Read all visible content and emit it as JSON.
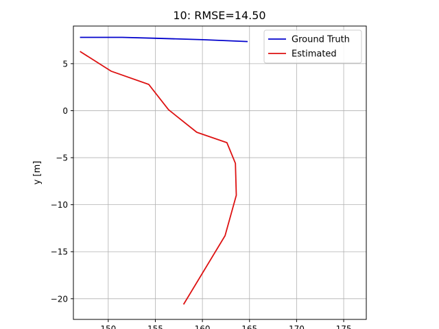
{
  "chart_data": {
    "type": "line",
    "title": "10: RMSE=14.50",
    "xlabel": "",
    "ylabel": "y [m]",
    "xlim": [
      146.3,
      177.4
    ],
    "ylim": [
      -22.2,
      9.0
    ],
    "xticks": [
      150,
      155,
      160,
      165,
      170,
      175
    ],
    "yticks": [
      -20,
      -15,
      -10,
      -5,
      0,
      5
    ],
    "grid": true,
    "legend_position": "top-right",
    "series": [
      {
        "name": "Ground Truth",
        "color": "#0000cc",
        "x": [
          147.0,
          151.5,
          155.0,
          160.0,
          164.8
        ],
        "y": [
          7.8,
          7.8,
          7.7,
          7.55,
          7.35
        ]
      },
      {
        "name": "Estimated",
        "color": "#dd1111",
        "x": [
          147.0,
          150.3,
          154.3,
          156.4,
          159.4,
          162.6,
          163.5,
          163.6,
          162.4,
          158.0
        ],
        "y": [
          6.3,
          4.2,
          2.8,
          0.1,
          -2.3,
          -3.4,
          -5.6,
          -9.0,
          -13.3,
          -20.6
        ]
      }
    ]
  }
}
